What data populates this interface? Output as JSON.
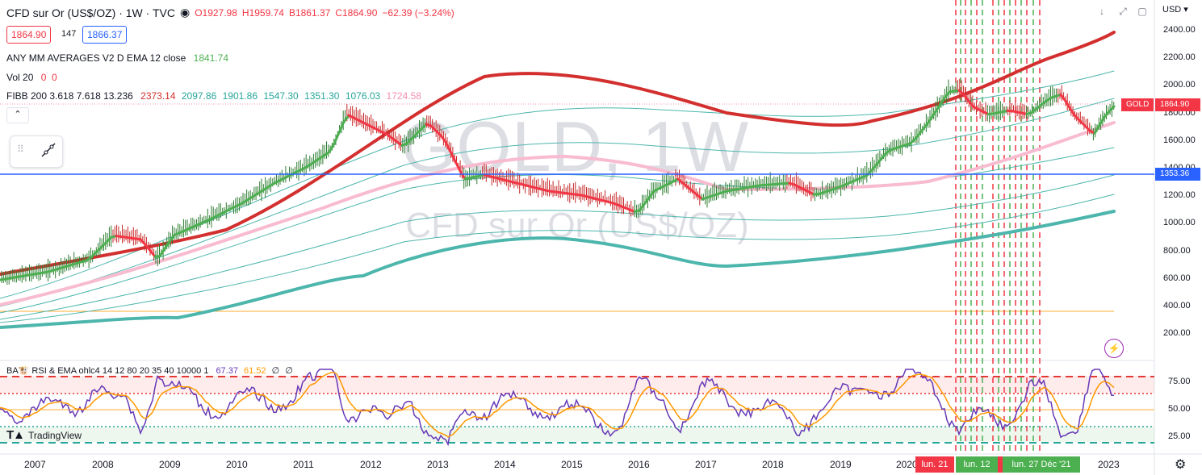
{
  "symbol": {
    "title": "CFD sur Or (US$/OZ) · 1W · TVC",
    "ohlc": {
      "o": "O1927.98",
      "h": "H1959.74",
      "l": "B1861.37",
      "c": "C1864.90",
      "change": "−62.39 (−3.24%)"
    },
    "bid": "1864.90",
    "spread": "147",
    "ask": "1866.37"
  },
  "indicators": {
    "ma_label": "ANY MM AVERAGES V2 D EMA 12 close",
    "ma_value": "1841.74",
    "vol_label": "Vol 20",
    "vol_values": "0  0",
    "fib_label": "FIBB 200 3.618 7.618 13.236",
    "fib_values": [
      "2373.14",
      "2097.86",
      "1901.86",
      "1547.30",
      "1351.30",
      "1076.03",
      "1724.58"
    ],
    "rsi_label": "BA🐮 RSI & EMA ohlc4 14 12 80 20 35 40 10000 1",
    "rsi_values": [
      "67.37",
      "61.52",
      "∅",
      "∅"
    ]
  },
  "watermark": {
    "line1": "GOLD, 1W",
    "line2": "CFD sur Or (US$/OZ)"
  },
  "price_axis": {
    "currency": "USD",
    "ticks": [
      "2400.00",
      "2200.00",
      "2000.00",
      "1800.00",
      "1600.00",
      "1400.00",
      "1200.00",
      "1000.00",
      "800.00",
      "600.00",
      "400.00",
      "200.00"
    ],
    "gold_tag": "GOLD",
    "gold_price": "1864.90",
    "hline_price": "1353.36"
  },
  "rsi_axis": {
    "ticks": [
      "75.00",
      "50.00",
      "25.00"
    ]
  },
  "time_axis": {
    "years": [
      "2007",
      "2008",
      "2009",
      "2010",
      "2011",
      "2012",
      "2013",
      "2014",
      "2015",
      "2016",
      "2017",
      "2018",
      "2019",
      "2020",
      "2023"
    ],
    "markers": [
      "lun. 21",
      "lun. 12",
      "lun. 27 Déc '21"
    ]
  },
  "branding": {
    "tradingview": "TradingView"
  },
  "colors": {
    "bull": "#4caf50",
    "bear": "#f23645",
    "hline": "#2962ff",
    "pink": "#f8bbd0",
    "teal": "#4db6ac",
    "rsi": "#673ab7",
    "rsi_ema": "#ff9800"
  }
}
